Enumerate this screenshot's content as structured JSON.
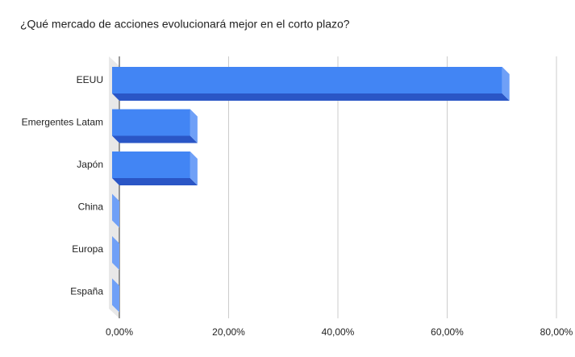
{
  "chart_data": {
    "type": "bar3d",
    "orientation": "horizontal",
    "title": "¿Qué mercado de acciones evolucionará mejor en el corto plazo?",
    "categories": [
      "EEUU",
      "Emergentes Latam",
      "Japón",
      "China",
      "Europa",
      "España"
    ],
    "values": [
      71.4,
      14.3,
      14.3,
      0,
      0,
      0
    ],
    "color": "#4285f4",
    "xlim": [
      0,
      80
    ],
    "xticks": [
      {
        "value": 0,
        "label": "0,00%"
      },
      {
        "value": 20,
        "label": "20,00%"
      },
      {
        "value": 40,
        "label": "40,00%"
      },
      {
        "value": 60,
        "label": "60,00%"
      },
      {
        "value": 80,
        "label": "80,00%"
      }
    ],
    "grid": true
  }
}
